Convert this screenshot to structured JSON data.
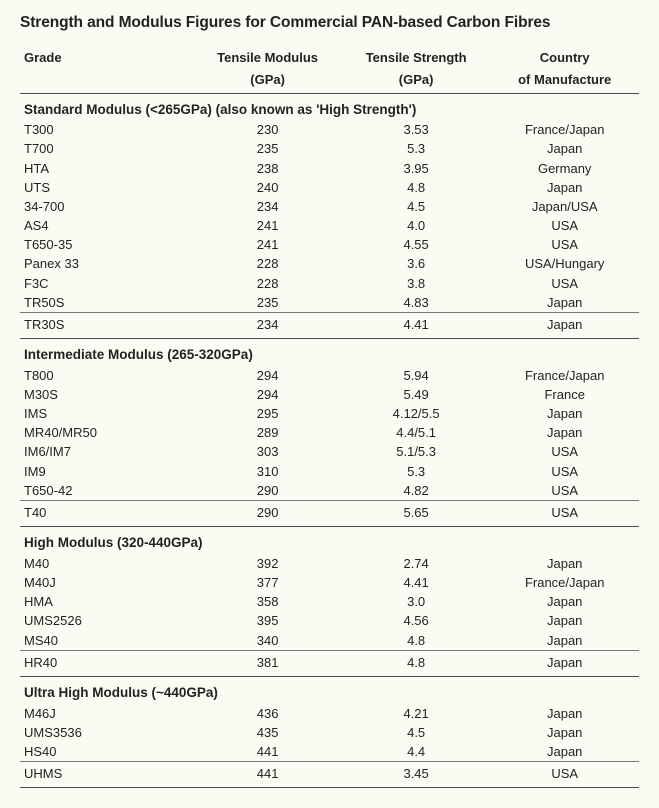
{
  "title": "Strength and Modulus Figures for Commercial PAN-based Carbon Fibres",
  "columns": {
    "grade": {
      "line1": "Grade",
      "line2": ""
    },
    "modulus": {
      "line1": "Tensile Modulus",
      "line2": "(GPa)"
    },
    "strength": {
      "line1": "Tensile Strength",
      "line2": "(GPa)"
    },
    "country": {
      "line1": "Country",
      "line2": "of Manufacture"
    }
  },
  "sections": [
    {
      "heading": "Standard Modulus  (<265GPa) (also known as 'High Strength')",
      "rows": [
        {
          "grade": "T300",
          "modulus": "230",
          "strength": "3.53",
          "country": "France/Japan"
        },
        {
          "grade": "T700",
          "modulus": "235",
          "strength": "5.3",
          "country": "Japan"
        },
        {
          "grade": "HTA",
          "modulus": "238",
          "strength": "3.95",
          "country": "Germany"
        },
        {
          "grade": "UTS",
          "modulus": "240",
          "strength": "4.8",
          "country": "Japan"
        },
        {
          "grade": "34-700",
          "modulus": "234",
          "strength": "4.5",
          "country": "Japan/USA"
        },
        {
          "grade": "AS4",
          "modulus": "241",
          "strength": "4.0",
          "country": "USA"
        },
        {
          "grade": "T650-35",
          "modulus": "241",
          "strength": "4.55",
          "country": "USA"
        },
        {
          "grade": "Panex 33",
          "modulus": "228",
          "strength": "3.6",
          "country": "USA/Hungary"
        },
        {
          "grade": "F3C",
          "modulus": "228",
          "strength": "3.8",
          "country": "USA"
        },
        {
          "grade": "TR50S",
          "modulus": "235",
          "strength": "4.83",
          "country": "Japan"
        }
      ],
      "lastRow": {
        "grade": "TR30S",
        "modulus": "234",
        "strength": "4.41",
        "country": "Japan"
      }
    },
    {
      "heading": "Intermediate Modulus  (265-320GPa)",
      "rows": [
        {
          "grade": "T800",
          "modulus": "294",
          "strength": "5.94",
          "country": "France/Japan"
        },
        {
          "grade": "M30S",
          "modulus": "294",
          "strength": "5.49",
          "country": "France"
        },
        {
          "grade": "IMS",
          "modulus": "295",
          "strength": "4.12/5.5",
          "country": "Japan"
        },
        {
          "grade": "MR40/MR50",
          "modulus": "289",
          "strength": "4.4/5.1",
          "country": "Japan"
        },
        {
          "grade": "IM6/IM7",
          "modulus": "303",
          "strength": "5.1/5.3",
          "country": "USA"
        },
        {
          "grade": "IM9",
          "modulus": "310",
          "strength": "5.3",
          "country": "USA"
        },
        {
          "grade": "T650-42",
          "modulus": "290",
          "strength": "4.82",
          "country": "USA"
        }
      ],
      "lastRow": {
        "grade": "T40",
        "modulus": "290",
        "strength": "5.65",
        "country": "USA"
      }
    },
    {
      "heading": "High Modulus  (320-440GPa)",
      "rows": [
        {
          "grade": "M40",
          "modulus": "392",
          "strength": "2.74",
          "country": "Japan"
        },
        {
          "grade": "M40J",
          "modulus": "377",
          "strength": "4.41",
          "country": "France/Japan"
        },
        {
          "grade": "HMA",
          "modulus": "358",
          "strength": "3.0",
          "country": "Japan"
        },
        {
          "grade": "UMS2526",
          "modulus": "395",
          "strength": "4.56",
          "country": "Japan"
        },
        {
          "grade": "MS40",
          "modulus": "340",
          "strength": "4.8",
          "country": "Japan"
        }
      ],
      "lastRow": {
        "grade": "HR40",
        "modulus": "381",
        "strength": "4.8",
        "country": "Japan"
      }
    },
    {
      "heading": "Ultra High Modulus  (~440GPa)",
      "rows": [
        {
          "grade": "M46J",
          "modulus": "436",
          "strength": "4.21",
          "country": "Japan"
        },
        {
          "grade": "UMS3536",
          "modulus": "435",
          "strength": "4.5",
          "country": "Japan"
        },
        {
          "grade": "HS40",
          "modulus": "441",
          "strength": "4.4",
          "country": "Japan"
        }
      ],
      "lastRow": {
        "grade": "UHMS",
        "modulus": "441",
        "strength": "3.45",
        "country": "USA"
      }
    }
  ],
  "style": {
    "background_color": "#fcfbf3",
    "text_color": "#222222",
    "rule_color": "#4a4a4a",
    "thin_rule_color": "#777777",
    "font_family": "Arial",
    "title_fontsize": 15.5,
    "body_fontsize": 13
  }
}
